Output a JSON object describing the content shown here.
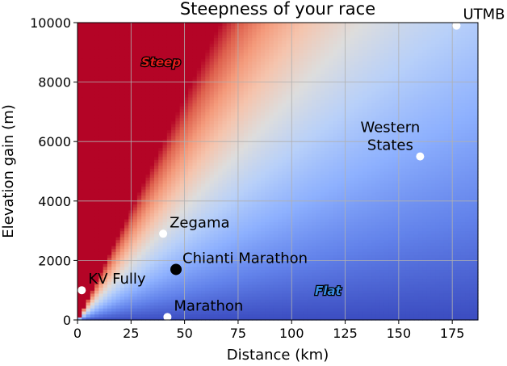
{
  "chart_data": {
    "type": "heatmap",
    "title": "Steepness of your race",
    "xlabel": "Distance (km)",
    "ylabel": "Elevation gain (m)",
    "xlim": [
      0,
      187
    ],
    "ylim": [
      0,
      10000
    ],
    "x_ticks": [
      0,
      25,
      50,
      75,
      100,
      125,
      150,
      175
    ],
    "y_ticks": [
      0,
      2000,
      4000,
      6000,
      8000,
      10000
    ],
    "grid": true,
    "colormap": "coolwarm",
    "color_metric": "elevation gain per km of distance",
    "color_range_m_per_km": [
      0,
      150
    ],
    "heatmap_resolution": {
      "x_bins": 94,
      "y_bins": 100
    },
    "region_labels": [
      {
        "text": "Steep",
        "x": 39,
        "y": 8700,
        "color": "#e31a1c"
      },
      {
        "text": "Flat",
        "x": 117,
        "y": 1000,
        "color": "#3a8ee6"
      }
    ],
    "races": [
      {
        "name": "UTMB",
        "x": 177,
        "y": 9900,
        "highlight": false
      },
      {
        "name": "Western\nStates",
        "x": 160,
        "y": 5500,
        "highlight": false
      },
      {
        "name": "Zegama",
        "x": 40,
        "y": 2900,
        "highlight": false
      },
      {
        "name": "Chianti Marathon",
        "x": 46,
        "y": 1700,
        "highlight": true
      },
      {
        "name": "KV Fully",
        "x": 2,
        "y": 1000,
        "highlight": false
      },
      {
        "name": "Marathon",
        "x": 42,
        "y": 100,
        "highlight": false
      }
    ]
  }
}
